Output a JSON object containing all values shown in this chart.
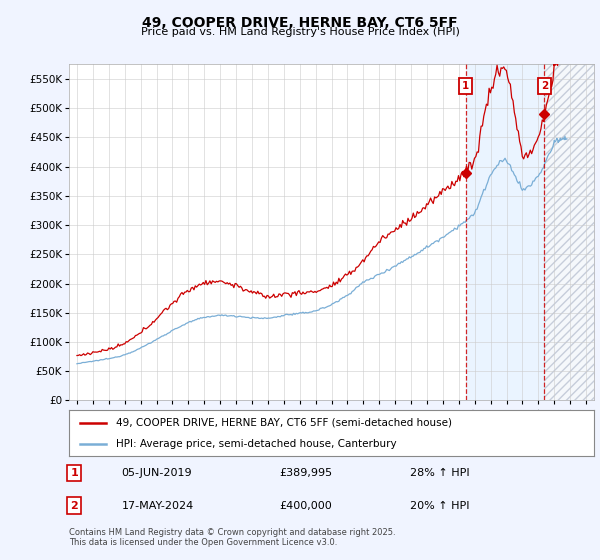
{
  "title": "49, COOPER DRIVE, HERNE BAY, CT6 5FF",
  "subtitle": "Price paid vs. HM Land Registry's House Price Index (HPI)",
  "ylim": [
    0,
    575000
  ],
  "xlim_start": 1994.5,
  "xlim_end": 2027.5,
  "yticks": [
    0,
    50000,
    100000,
    150000,
    200000,
    250000,
    300000,
    350000,
    400000,
    450000,
    500000,
    550000
  ],
  "ytick_labels": [
    "£0",
    "£50K",
    "£100K",
    "£150K",
    "£200K",
    "£250K",
    "£300K",
    "£350K",
    "£400K",
    "£450K",
    "£500K",
    "£550K"
  ],
  "red_line_color": "#cc0000",
  "blue_line_color": "#7aaed6",
  "marker1_x": 2019.44,
  "marker2_x": 2024.38,
  "shade_start": 2019.44,
  "shade_end": 2024.38,
  "hatch_start": 2024.38,
  "legend_red_label": "49, COOPER DRIVE, HERNE BAY, CT6 5FF (semi-detached house)",
  "legend_blue_label": "HPI: Average price, semi-detached house, Canterbury",
  "annotation1_date": "05-JUN-2019",
  "annotation1_price": "£389,995",
  "annotation1_hpi": "28% ↑ HPI",
  "annotation2_date": "17-MAY-2024",
  "annotation2_price": "£400,000",
  "annotation2_hpi": "20% ↑ HPI",
  "footnote": "Contains HM Land Registry data © Crown copyright and database right 2025.\nThis data is licensed under the Open Government Licence v3.0.",
  "background_color": "#f0f4ff",
  "plot_bg_color": "#ffffff",
  "grid_color": "#cccccc",
  "shade_color": "#ddeeff",
  "hatch_color": "#d0d8e8"
}
